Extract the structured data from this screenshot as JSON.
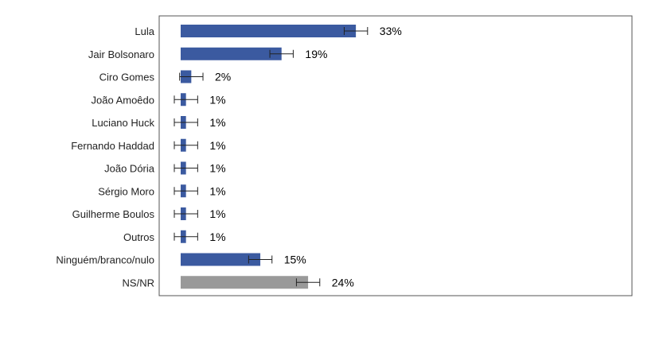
{
  "chart_data": {
    "type": "bar",
    "orientation": "horizontal",
    "categories": [
      "Lula",
      "Jair Bolsonaro",
      "Ciro Gomes",
      "João Amoêdo",
      "Luciano Huck",
      "Fernando Haddad",
      "João Dória",
      "Sérgio Moro",
      "Guilherme Boulos",
      "Outros",
      "Ninguém/branco/nulo",
      "NS/NR"
    ],
    "values": [
      33,
      19,
      2,
      1,
      1,
      1,
      1,
      1,
      1,
      1,
      15,
      24
    ],
    "value_labels": [
      "33%",
      "19%",
      "2%",
      "1%",
      "1%",
      "1%",
      "1%",
      "1%",
      "1%",
      "1%",
      "15%",
      "24%"
    ],
    "error_bars": [
      2.2,
      2.2,
      2.2,
      2.2,
      2.2,
      2.2,
      2.2,
      2.2,
      2.2,
      2.2,
      2.2,
      2.2
    ],
    "bar_colors": [
      "#3b5aa0",
      "#3b5aa0",
      "#3b5aa0",
      "#3b5aa0",
      "#3b5aa0",
      "#3b5aa0",
      "#3b5aa0",
      "#3b5aa0",
      "#3b5aa0",
      "#3b5aa0",
      "#3b5aa0",
      "#999999"
    ],
    "xlim": [
      0,
      85
    ],
    "title": "",
    "xlabel": "",
    "ylabel": "",
    "grid": false,
    "legend": "none"
  }
}
